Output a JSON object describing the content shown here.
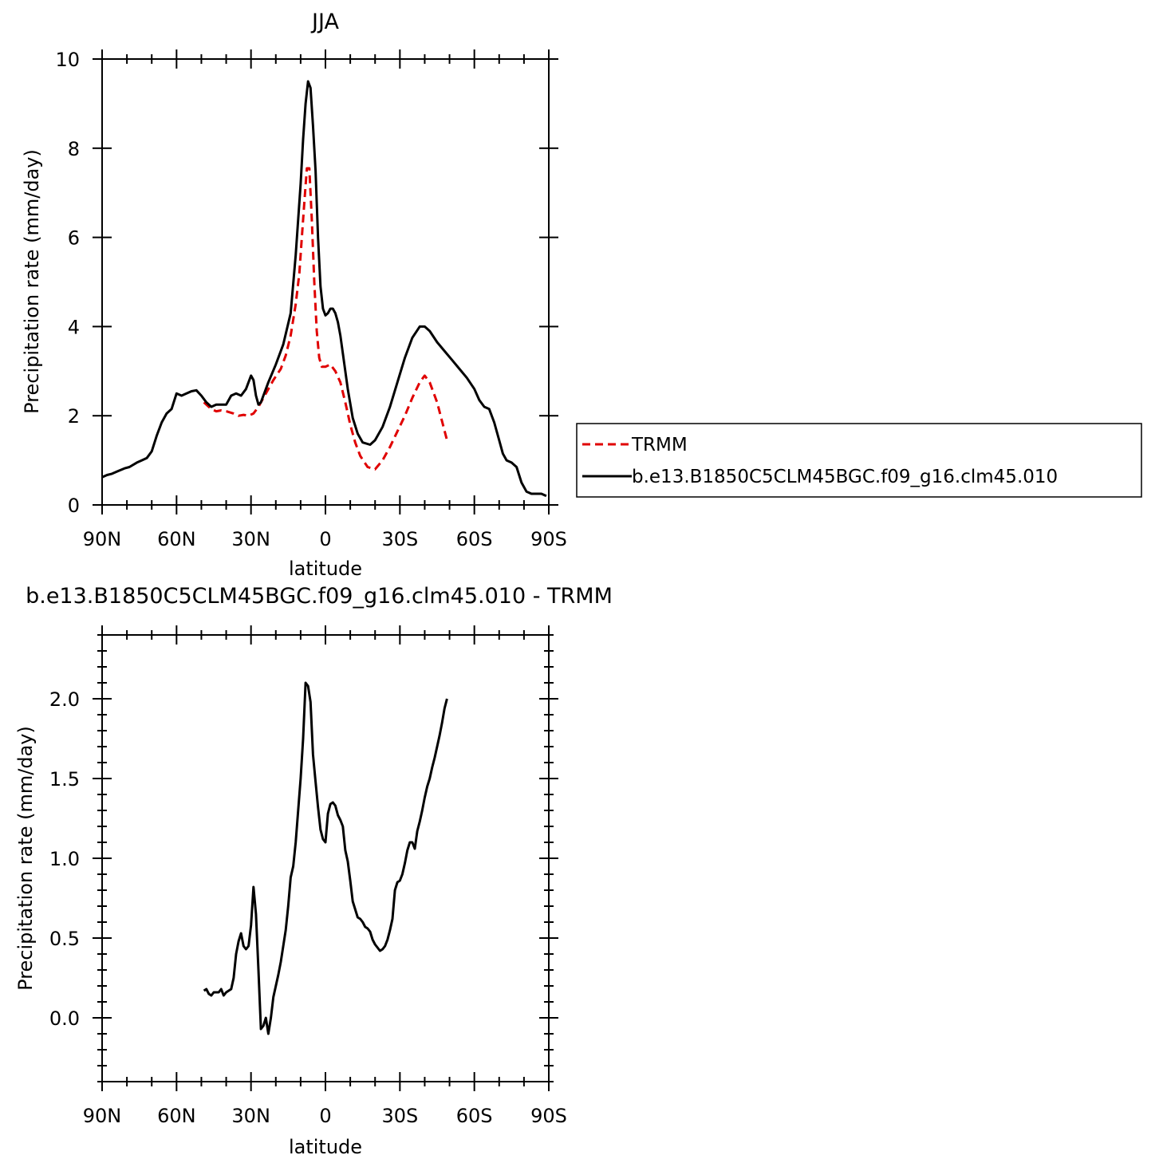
{
  "chart_data": [
    {
      "type": "line",
      "title": "JJA",
      "xlabel": "latitude",
      "ylabel": "Precipitation rate (mm/day)",
      "xlim": [
        90,
        -90
      ],
      "ylim": [
        0,
        10
      ],
      "x_tick_labels": [
        "90N",
        "60N",
        "30N",
        "0",
        "30S",
        "60S",
        "90S"
      ],
      "y_tick_labels": [
        "0",
        "2",
        "4",
        "6",
        "8",
        "10"
      ],
      "legend_position": "right",
      "series": [
        {
          "name": "TRMM",
          "color": "#e00000",
          "style": "dashed",
          "x": [
            49,
            46,
            44,
            42,
            40,
            37,
            35,
            33,
            31,
            29,
            27,
            24,
            21,
            18,
            16,
            14,
            12,
            10.5,
            9.5,
            8.5,
            7.5,
            6.5,
            5.5,
            4.5,
            3.5,
            2.5,
            1.5,
            0,
            -2,
            -4,
            -6,
            -8,
            -10,
            -12,
            -14,
            -17,
            -20,
            -23,
            -26,
            -29,
            -32,
            -35,
            -38,
            -40,
            -42,
            -45,
            -49
          ],
          "y": [
            2.3,
            2.15,
            2.1,
            2.12,
            2.1,
            2.05,
            2.0,
            2.02,
            2.0,
            2.05,
            2.2,
            2.5,
            2.8,
            3.05,
            3.35,
            3.8,
            4.5,
            5.2,
            6.0,
            6.8,
            7.55,
            7.55,
            6.4,
            5.0,
            3.9,
            3.3,
            3.1,
            3.1,
            3.15,
            3.0,
            2.75,
            2.3,
            1.8,
            1.4,
            1.1,
            0.85,
            0.8,
            1.0,
            1.3,
            1.65,
            2.0,
            2.4,
            2.75,
            2.9,
            2.75,
            2.3,
            1.45
          ]
        },
        {
          "name": "b.e13.B1850C5CLM45BGC.f09_g16.clm45.010",
          "color": "#000000",
          "style": "solid",
          "x": [
            90,
            88,
            86,
            84,
            81,
            79,
            76,
            74,
            72,
            70,
            68,
            66,
            64,
            62,
            60,
            58,
            56,
            54,
            52,
            50,
            48,
            46,
            44,
            42,
            40,
            38,
            36,
            34,
            32,
            30,
            29,
            28,
            27,
            26,
            25,
            23,
            20,
            17,
            14,
            12,
            10,
            9,
            8,
            7,
            6,
            5,
            4,
            3,
            2,
            1,
            0,
            -1,
            -2,
            -3,
            -4,
            -5,
            -6,
            -7,
            -9,
            -11,
            -13,
            -15,
            -18,
            -20,
            -23,
            -26,
            -29,
            -32,
            -35,
            -38,
            -40,
            -42,
            -45,
            -48,
            -51,
            -54,
            -57,
            -60,
            -62,
            -64,
            -66,
            -68,
            -70,
            -71.5,
            -73,
            -75,
            -77,
            -79,
            -81,
            -83,
            -85,
            -87,
            -89
          ],
          "y": [
            0.62,
            0.67,
            0.7,
            0.75,
            0.82,
            0.85,
            0.95,
            1.0,
            1.05,
            1.2,
            1.55,
            1.85,
            2.05,
            2.15,
            2.5,
            2.45,
            2.5,
            2.55,
            2.57,
            2.45,
            2.3,
            2.2,
            2.25,
            2.25,
            2.25,
            2.45,
            2.5,
            2.45,
            2.6,
            2.9,
            2.8,
            2.45,
            2.25,
            2.3,
            2.45,
            2.75,
            3.15,
            3.6,
            4.3,
            5.6,
            7.2,
            8.2,
            9.0,
            9.5,
            9.35,
            8.5,
            7.5,
            6.0,
            4.9,
            4.4,
            4.25,
            4.3,
            4.4,
            4.4,
            4.3,
            4.1,
            3.8,
            3.4,
            2.6,
            1.95,
            1.6,
            1.4,
            1.35,
            1.45,
            1.75,
            2.2,
            2.75,
            3.3,
            3.75,
            4.0,
            4.0,
            3.9,
            3.65,
            3.45,
            3.25,
            3.05,
            2.85,
            2.6,
            2.35,
            2.2,
            2.15,
            1.85,
            1.45,
            1.15,
            1.0,
            0.95,
            0.85,
            0.5,
            0.3,
            0.25,
            0.25,
            0.25,
            0.2
          ]
        }
      ]
    },
    {
      "type": "line",
      "title": "b.e13.B1850C5CLM45BGC.f09_g16.clm45.010 - TRMM",
      "xlabel": "latitude",
      "ylabel": "Precipitation rate (mm/day)",
      "xlim": [
        90,
        -90
      ],
      "ylim": [
        -0.4,
        2.4
      ],
      "x_tick_labels": [
        "90N",
        "60N",
        "30N",
        "0",
        "30S",
        "60S",
        "90S"
      ],
      "y_tick_labels": [
        "0.0",
        "0.5",
        "1.0",
        "1.5",
        "2.0"
      ],
      "series": [
        {
          "color": "#000000",
          "style": "solid",
          "x": [
            49,
            48,
            47,
            46,
            45,
            44,
            43,
            42,
            41,
            40,
            39,
            38,
            37,
            36,
            35,
            34,
            33,
            32,
            31,
            30,
            29,
            28,
            27,
            26,
            25,
            24,
            23,
            22,
            21,
            20,
            19,
            18,
            17,
            16,
            15,
            14,
            13,
            12,
            11,
            10,
            9,
            8,
            7,
            6,
            5,
            4,
            3,
            2,
            1,
            0,
            -1,
            -2,
            -3,
            -4,
            -5,
            -6,
            -7,
            -8,
            -9,
            -10,
            -11,
            -12,
            -13,
            -14,
            -15,
            -16,
            -17,
            -18,
            -19,
            -20,
            -21,
            -22,
            -23,
            -24,
            -25,
            -26,
            -27,
            -28,
            -29,
            -30,
            -31,
            -32,
            -33,
            -34,
            -35,
            -36,
            -37,
            -38,
            -39,
            -40,
            -41,
            -42,
            -43,
            -44,
            -45,
            -46,
            -47,
            -48,
            -49
          ],
          "y": [
            0.17,
            0.18,
            0.15,
            0.14,
            0.16,
            0.16,
            0.16,
            0.18,
            0.14,
            0.16,
            0.17,
            0.18,
            0.25,
            0.4,
            0.48,
            0.53,
            0.45,
            0.43,
            0.45,
            0.58,
            0.82,
            0.65,
            0.3,
            -0.07,
            -0.05,
            0.0,
            -0.1,
            0.0,
            0.13,
            0.2,
            0.27,
            0.35,
            0.45,
            0.55,
            0.7,
            0.88,
            0.95,
            1.1,
            1.3,
            1.5,
            1.75,
            2.1,
            2.08,
            1.98,
            1.65,
            1.48,
            1.32,
            1.18,
            1.12,
            1.1,
            1.28,
            1.34,
            1.35,
            1.33,
            1.27,
            1.24,
            1.2,
            1.05,
            0.98,
            0.86,
            0.73,
            0.68,
            0.63,
            0.62,
            0.6,
            0.57,
            0.56,
            0.54,
            0.49,
            0.46,
            0.44,
            0.42,
            0.43,
            0.45,
            0.49,
            0.55,
            0.62,
            0.8,
            0.85,
            0.86,
            0.9,
            0.97,
            1.05,
            1.1,
            1.1,
            1.06,
            1.17,
            1.23,
            1.3,
            1.38,
            1.45,
            1.5,
            1.57,
            1.63,
            1.7,
            1.77,
            1.85,
            1.94,
            2.0
          ]
        }
      ]
    }
  ]
}
